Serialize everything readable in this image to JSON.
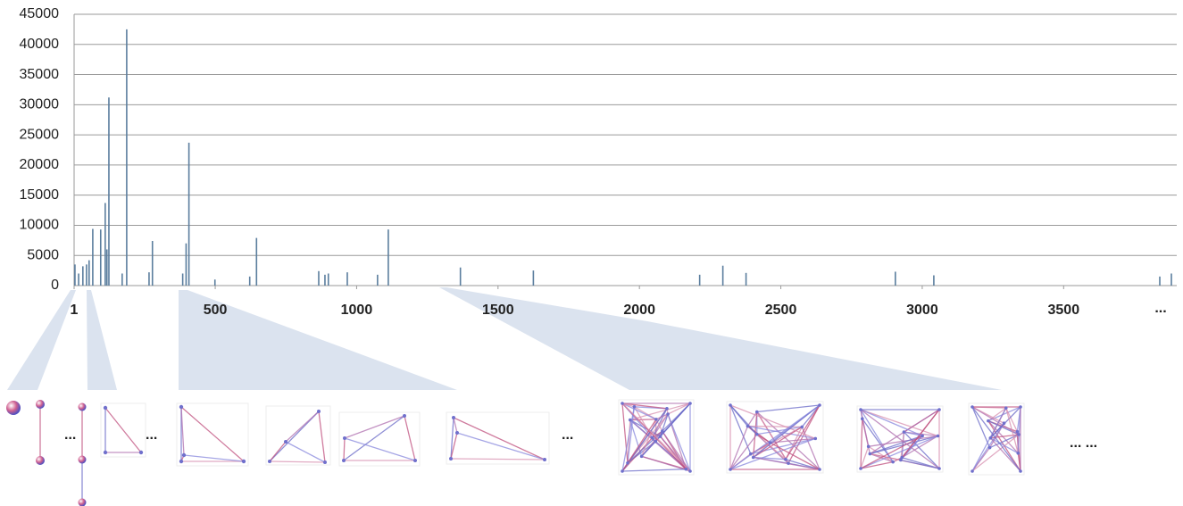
{
  "chart_data": {
    "type": "bar",
    "x": [
      4,
      17,
      32,
      45,
      54,
      67,
      95,
      111,
      117,
      124,
      171,
      187,
      266,
      278,
      385,
      397,
      407,
      499,
      622,
      646,
      866,
      888,
      900,
      967,
      1074,
      1112,
      1367,
      1625,
      2213,
      2295,
      2377,
      2905,
      3041,
      3840,
      3881
    ],
    "values": [
      3500,
      2000,
      3200,
      3500,
      4200,
      9400,
      9300,
      13700,
      6000,
      31200,
      2000,
      42500,
      2200,
      7400,
      2000,
      7000,
      23700,
      1000,
      1500,
      7900,
      2400,
      1800,
      2000,
      2200,
      1800,
      9300,
      3000,
      2500,
      1800,
      3300,
      2100,
      2300,
      1700,
      1500,
      2000
    ],
    "color": "#5b7e9e",
    "xlim": [
      1,
      3900
    ],
    "xticks": [
      1,
      500,
      1000,
      1500,
      2000,
      2500,
      3000,
      3500
    ],
    "ylim": [
      0,
      45000
    ],
    "yticks": [
      0,
      5000,
      10000,
      15000,
      20000,
      25000,
      30000,
      35000,
      40000,
      45000
    ],
    "grid": true,
    "x_axis_continuation": "..."
  },
  "gallery": {
    "ellipses": [
      "...",
      "...",
      "...",
      "... ..."
    ]
  }
}
